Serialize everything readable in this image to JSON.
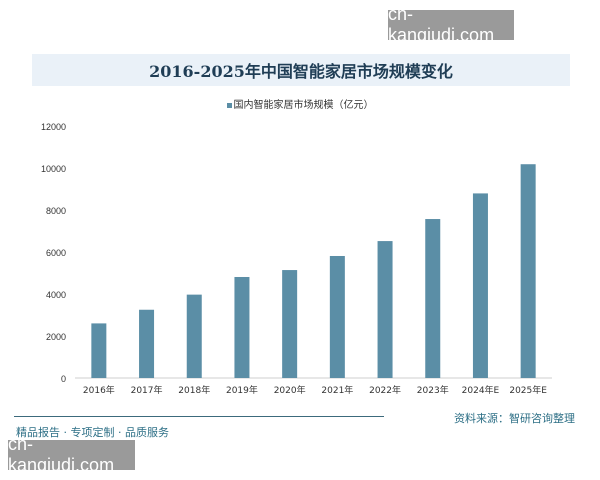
{
  "watermark": "cn-kanqiudi.com",
  "footer": {
    "slogan": "精品报告 · 专项定制 · 品质服务",
    "source": "资料来源：智研咨询整理"
  },
  "chart_data": {
    "type": "bar",
    "title": "2016-2025年中国智能家居市场规模变化",
    "categories": [
      "2016年",
      "2017年",
      "2018年",
      "2019年",
      "2020年",
      "2021年",
      "2022年",
      "2023年",
      "2024年E",
      "2025年E"
    ],
    "series": [
      {
        "name": "国内智能家居市场规模（亿元）",
        "values": [
          2600,
          3250,
          3970,
          4810,
          5140,
          5810,
          6520,
          7570,
          8790,
          10180
        ],
        "color": "#5b8ea6"
      }
    ],
    "yticks": [
      0,
      2000,
      4000,
      6000,
      8000,
      10000,
      12000
    ],
    "ylim": [
      0,
      12000
    ],
    "grid": false,
    "legend": "top-center"
  }
}
